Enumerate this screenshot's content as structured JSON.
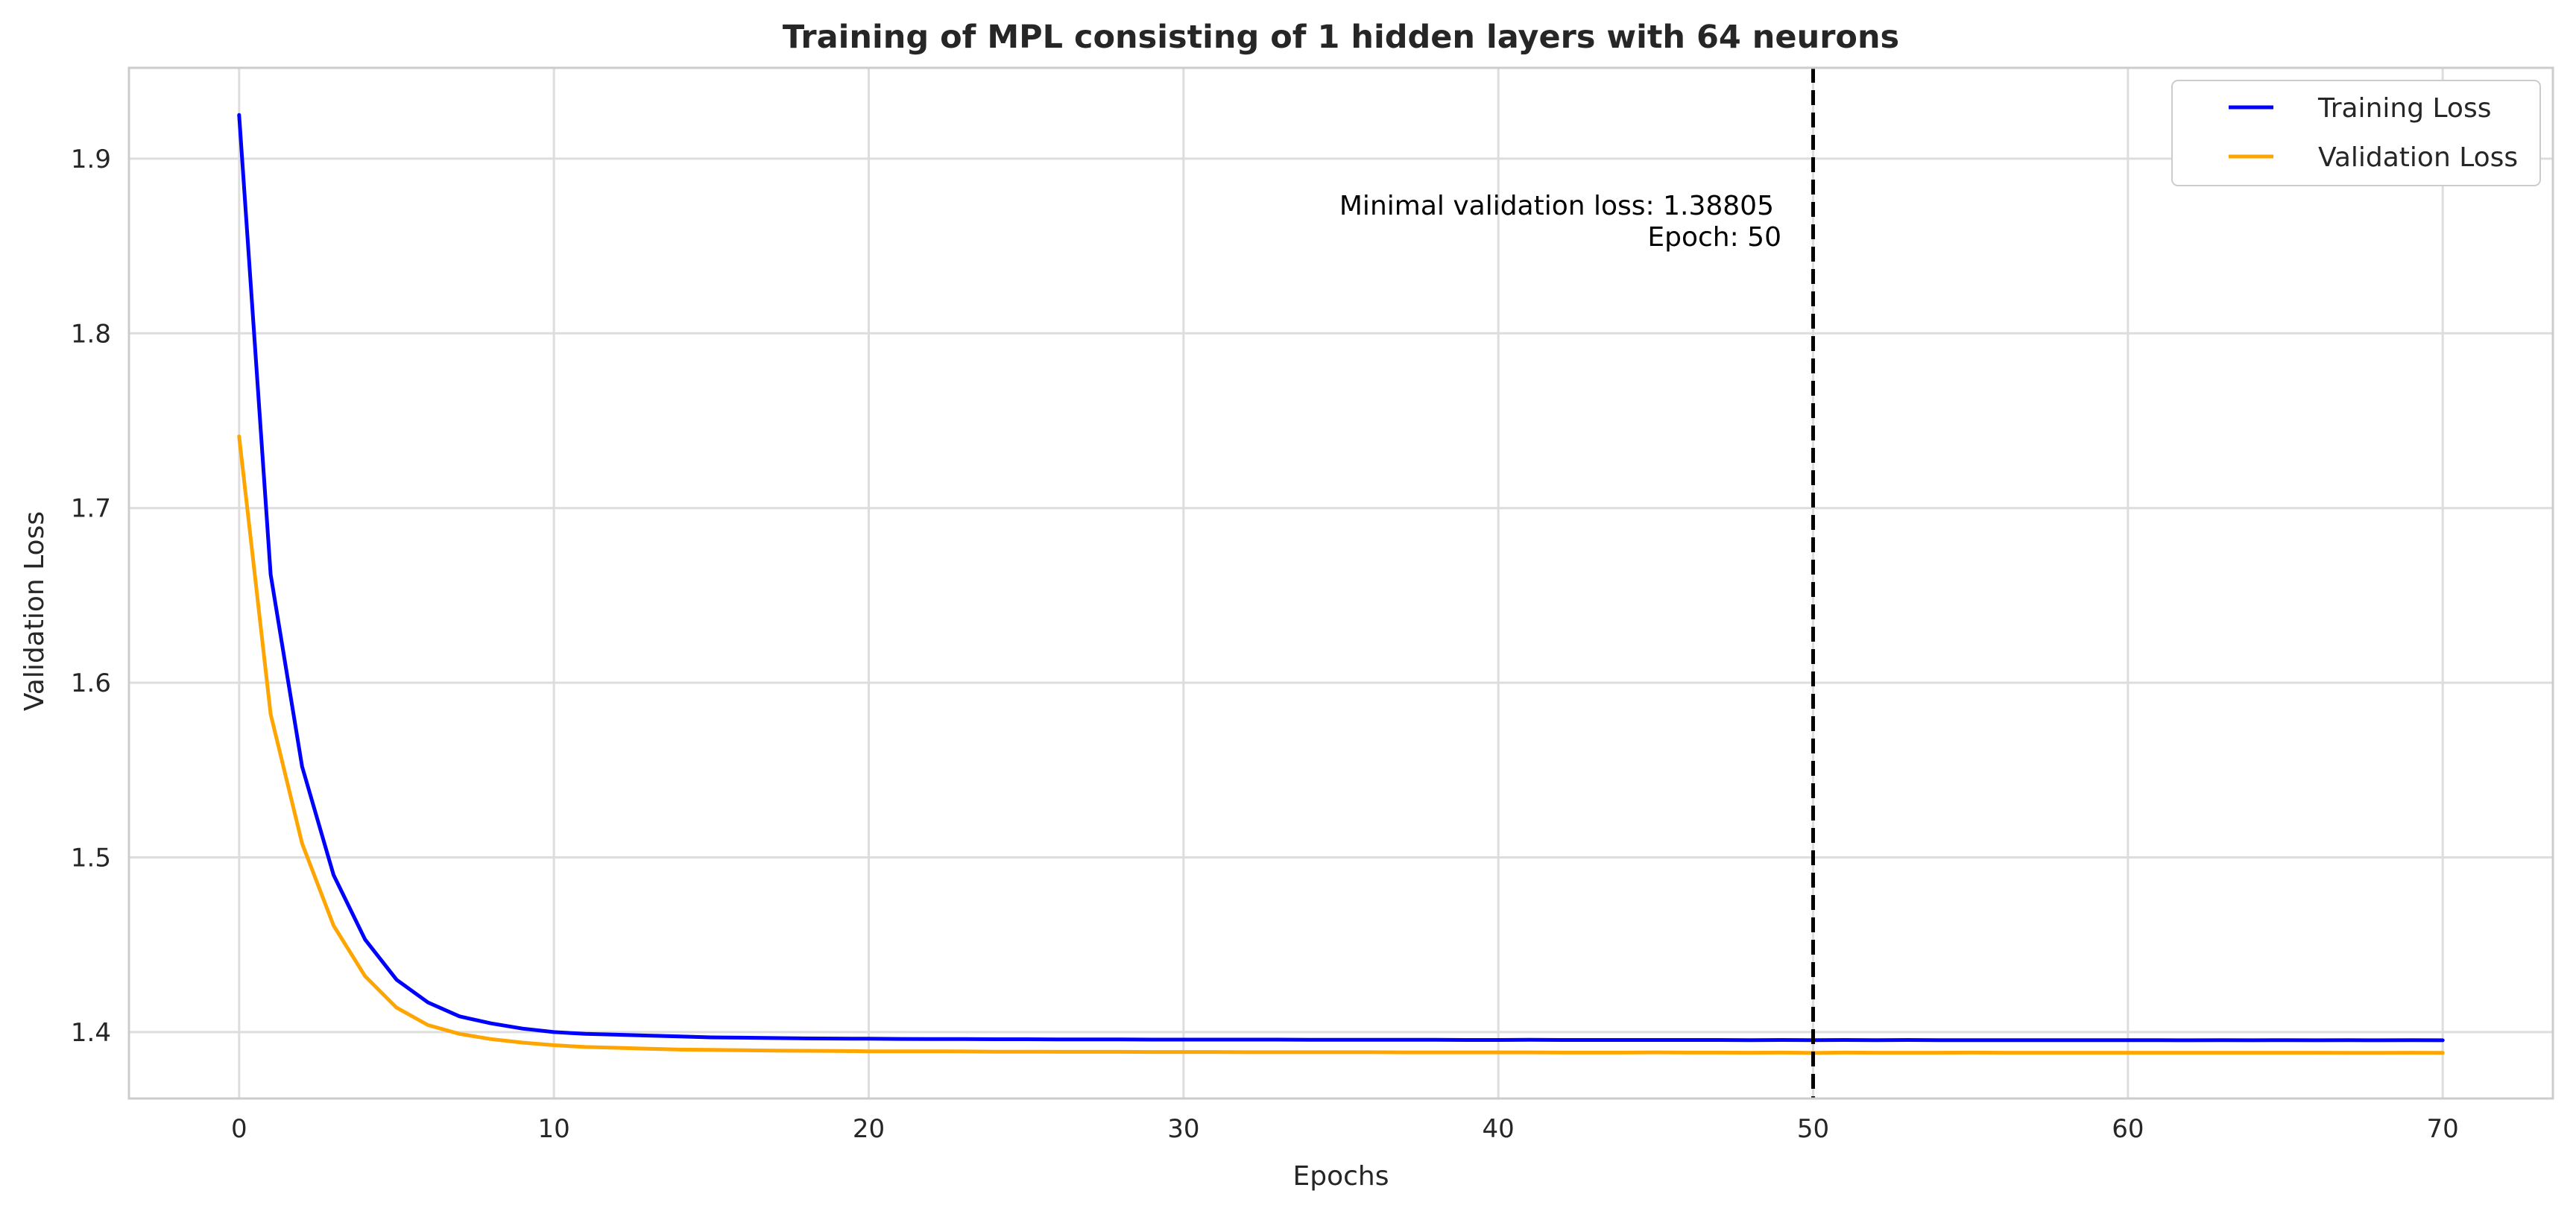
{
  "chart_data": {
    "type": "line",
    "title": "Training of MPL consisting of 1 hidden layers with 64 neurons",
    "xlabel": "Epochs",
    "ylabel": "Validation Loss",
    "xlim": [
      -3.5,
      73.5
    ],
    "ylim": [
      1.362,
      1.952
    ],
    "xticks": [
      0,
      10,
      20,
      30,
      40,
      50,
      60,
      70
    ],
    "yticks": [
      1.4,
      1.5,
      1.6,
      1.7,
      1.8,
      1.9
    ],
    "ytick_labels": [
      "1.4",
      "1.5",
      "1.6",
      "1.7",
      "1.8",
      "1.9"
    ],
    "grid": true,
    "legend_position": "top-right",
    "x": [
      0,
      1,
      2,
      3,
      4,
      5,
      6,
      7,
      8,
      9,
      10,
      11,
      12,
      13,
      14,
      15,
      16,
      17,
      18,
      19,
      20,
      21,
      22,
      23,
      24,
      25,
      26,
      27,
      28,
      29,
      30,
      31,
      32,
      33,
      34,
      35,
      36,
      37,
      38,
      39,
      40,
      41,
      42,
      43,
      44,
      45,
      46,
      47,
      48,
      49,
      50,
      51,
      52,
      53,
      54,
      55,
      56,
      57,
      58,
      59,
      60,
      61,
      62,
      63,
      64,
      65,
      66,
      67,
      68,
      69,
      70
    ],
    "series": [
      {
        "name": "Training Loss",
        "color": "#0000ff",
        "values": [
          1.925,
          1.662,
          1.552,
          1.49,
          1.453,
          1.43,
          1.417,
          1.409,
          1.405,
          1.402,
          1.4,
          1.399,
          1.3985,
          1.398,
          1.3975,
          1.397,
          1.3968,
          1.3966,
          1.3964,
          1.3963,
          1.3962,
          1.3961,
          1.396,
          1.396,
          1.3959,
          1.3959,
          1.3958,
          1.3958,
          1.3958,
          1.3957,
          1.3957,
          1.3957,
          1.3957,
          1.3957,
          1.3956,
          1.3956,
          1.3956,
          1.3956,
          1.3956,
          1.3955,
          1.3955,
          1.3956,
          1.3955,
          1.3955,
          1.3955,
          1.3955,
          1.3955,
          1.3955,
          1.3954,
          1.3955,
          1.3954,
          1.3955,
          1.3954,
          1.3955,
          1.3954,
          1.3954,
          1.3954,
          1.3954,
          1.3954,
          1.3954,
          1.3954,
          1.3954,
          1.3953,
          1.3954,
          1.3953,
          1.3954,
          1.3953,
          1.3954,
          1.3953,
          1.3954,
          1.3953
        ]
      },
      {
        "name": "Validation Loss",
        "color": "#ffa500",
        "values": [
          1.741,
          1.582,
          1.508,
          1.461,
          1.432,
          1.414,
          1.404,
          1.399,
          1.396,
          1.394,
          1.3925,
          1.3915,
          1.391,
          1.3905,
          1.39,
          1.3898,
          1.3896,
          1.3894,
          1.3893,
          1.3892,
          1.389,
          1.389,
          1.389,
          1.3889,
          1.3888,
          1.3888,
          1.3887,
          1.3887,
          1.3887,
          1.3886,
          1.3886,
          1.3886,
          1.3885,
          1.3885,
          1.3885,
          1.3885,
          1.3885,
          1.3884,
          1.3884,
          1.3884,
          1.3884,
          1.3884,
          1.3883,
          1.3883,
          1.3883,
          1.3884,
          1.3883,
          1.3883,
          1.3882,
          1.3883,
          1.38805,
          1.3883,
          1.3882,
          1.3882,
          1.3882,
          1.3883,
          1.3882,
          1.3882,
          1.3882,
          1.3882,
          1.3882,
          1.3882,
          1.3882,
          1.3882,
          1.3882,
          1.3882,
          1.3882,
          1.3881,
          1.3881,
          1.3882,
          1.3881
        ]
      }
    ],
    "vline": {
      "x": 50,
      "color": "#000000",
      "style": "dashed"
    },
    "annotation": {
      "line1": "Minimal validation loss: 1.38805",
      "line2": "Epoch: 50"
    }
  }
}
